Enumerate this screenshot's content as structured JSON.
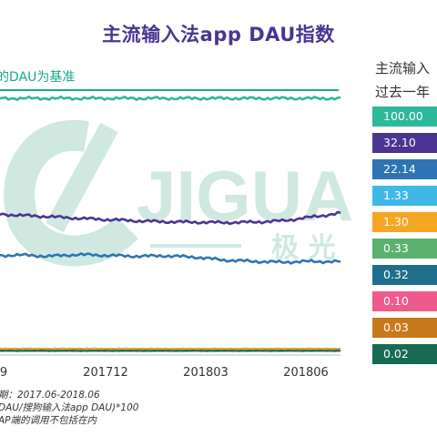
{
  "title": "主流输入法app DAU指数",
  "subtitle": "的DAU为基准",
  "legend_heading": [
    "主流输入",
    "过去一年"
  ],
  "footnotes": [
    "期：2017.06-2018.06",
    "DAU/搜狗输入法app DAU)*100",
    "AP端的调用不包括在内"
  ],
  "watermark": {
    "text_latin": "JIGUA",
    "text_cjk": "极 光",
    "color": "#cfe9e0"
  },
  "chart_data": {
    "type": "line",
    "title": "主流输入法app DAU指数",
    "xlabel": "",
    "ylabel": "",
    "x_ticks": [
      "9",
      "201712",
      "201803",
      "201806"
    ],
    "legend_position": "right",
    "grid": false,
    "series": [
      {
        "value_label": "100.00",
        "color": "#2eb89a",
        "values": [
          100,
          100,
          100,
          100,
          100,
          100,
          100,
          100,
          100,
          100,
          100,
          100,
          100
        ]
      },
      {
        "value_label": "32.10",
        "color": "#4a3590",
        "values": [
          33,
          32.6,
          32.3,
          31.9,
          31.6,
          31.3,
          31.1,
          31.0,
          30.9,
          31.0,
          31.3,
          32.2,
          33.1
        ]
      },
      {
        "value_label": "22.14",
        "color": "#2e74b5",
        "values": [
          23.1,
          23.3,
          23.0,
          23.4,
          23.2,
          23.0,
          23.1,
          22.8,
          22.1,
          21.8,
          21.6,
          21.8,
          21.7
        ]
      },
      {
        "value_label": "1.33",
        "color": "#3fb8e8",
        "values": [
          1.4,
          1.4,
          1.35,
          1.35,
          1.33,
          1.3,
          1.32,
          1.33,
          1.33,
          1.34,
          1.33,
          1.33,
          1.33
        ]
      },
      {
        "value_label": "1.30",
        "color": "#f5a623",
        "values": [
          1.3,
          1.3,
          1.3,
          1.3,
          1.3,
          1.3,
          1.3,
          1.3,
          1.3,
          1.3,
          1.3,
          1.3,
          1.3
        ]
      },
      {
        "value_label": "0.33",
        "color": "#5ab26e",
        "values": [
          0.33,
          0.33,
          0.33,
          0.33,
          0.33,
          0.33,
          0.33,
          0.33,
          0.33,
          0.33,
          0.33,
          0.33,
          0.33
        ]
      },
      {
        "value_label": "0.32",
        "color": "#1f6e8c",
        "values": [
          0.32,
          0.32,
          0.32,
          0.32,
          0.32,
          0.32,
          0.32,
          0.32,
          0.32,
          0.32,
          0.32,
          0.32,
          0.32
        ]
      },
      {
        "value_label": "0.10",
        "color": "#ef5b8c",
        "values": [
          0.1,
          0.1,
          0.1,
          0.1,
          0.1,
          0.1,
          0.1,
          0.1,
          0.1,
          0.1,
          0.1,
          0.1,
          0.1
        ]
      },
      {
        "value_label": "0.03",
        "color": "#c8791c",
        "values": [
          0.03,
          0.03,
          0.03,
          0.03,
          0.03,
          0.03,
          0.03,
          0.03,
          0.03,
          0.03,
          0.03,
          0.03,
          0.03
        ]
      },
      {
        "value_label": "0.02",
        "color": "#176b52",
        "values": [
          0.02,
          0.02,
          0.02,
          0.02,
          0.02,
          0.02,
          0.02,
          0.02,
          0.02,
          0.02,
          0.02,
          0.02,
          0.02
        ]
      }
    ]
  }
}
